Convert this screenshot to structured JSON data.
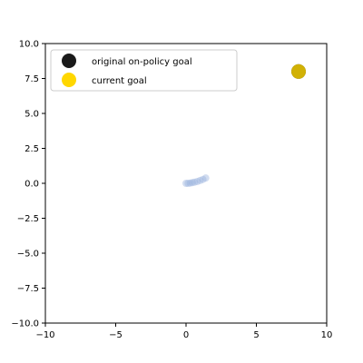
{
  "chart_data": {
    "type": "scatter",
    "xlim": [
      -10,
      10
    ],
    "ylim": [
      -10,
      10
    ],
    "x_ticks": [
      -10,
      -5,
      0,
      5,
      10
    ],
    "y_ticks": [
      -10.0,
      -7.5,
      -5.0,
      -2.5,
      0.0,
      2.5,
      5.0,
      7.5,
      10.0
    ],
    "x_tick_labels": [
      "−10",
      "−5",
      "0",
      "5",
      "10"
    ],
    "y_tick_labels": [
      "−10.0",
      "−7.5",
      "−5.0",
      "−2.5",
      "0.0",
      "2.5",
      "5.0",
      "7.5",
      "10.0"
    ],
    "grid": false,
    "legend": {
      "position": "top-left",
      "entries": [
        {
          "label": "original on-policy goal",
          "color": "#1a1a1a"
        },
        {
          "label": "current goal",
          "color": "#ffd700"
        }
      ]
    },
    "series": [
      {
        "name": "original on-policy goal",
        "color": "#1a1a1a",
        "points": [
          {
            "x": 8,
            "y": 8
          }
        ]
      },
      {
        "name": "current goal",
        "color": "#ffd700",
        "points": [
          {
            "x": 8,
            "y": 8
          }
        ]
      },
      {
        "color": "#9bb4de",
        "points": [
          {
            "x": 0.0,
            "y": 0.0
          },
          {
            "x": 0.15,
            "y": 0.0
          },
          {
            "x": 0.3,
            "y": 0.02
          },
          {
            "x": 0.45,
            "y": 0.05
          },
          {
            "x": 0.6,
            "y": 0.08
          },
          {
            "x": 0.8,
            "y": 0.13
          },
          {
            "x": 1.0,
            "y": 0.2
          },
          {
            "x": 1.2,
            "y": 0.28
          },
          {
            "x": 1.4,
            "y": 0.38
          }
        ]
      }
    ]
  }
}
